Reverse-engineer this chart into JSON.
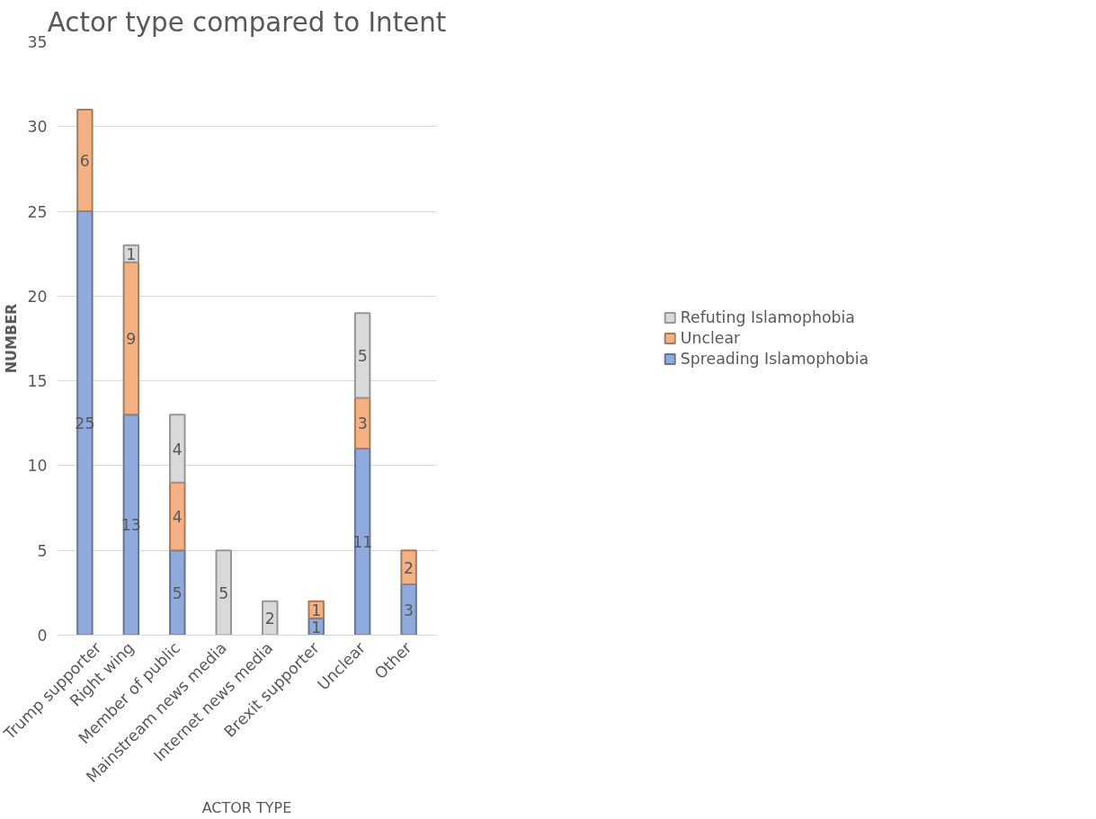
{
  "chart_data": {
    "type": "bar",
    "title": "Actor type compared to Intent",
    "xlabel": "ACTOR TYPE",
    "ylabel": "NUMBER",
    "categories": [
      "Trump supporter",
      "Right wing",
      "Member of public",
      "Mainstream news media",
      "Internet news media",
      "Brexit supporter",
      "Unclear",
      "Other"
    ],
    "series": [
      {
        "name": "Spreading Islamophobia",
        "color": "#8faadc",
        "values": [
          25,
          13,
          5,
          null,
          null,
          1,
          11,
          3
        ]
      },
      {
        "name": "Unclear",
        "color": "#f4b183",
        "values": [
          6,
          9,
          4,
          null,
          null,
          1,
          3,
          2
        ]
      },
      {
        "name": "Refuting Islamophobia",
        "color": "#d9d9d9",
        "values": [
          null,
          1,
          4,
          5,
          2,
          null,
          5,
          null
        ]
      }
    ],
    "stacked": true,
    "data_labels": true,
    "ylim": [
      0,
      35
    ],
    "yticks": [
      0,
      5,
      10,
      15,
      20,
      25,
      30,
      35
    ],
    "grid": "y",
    "legend": "right"
  }
}
